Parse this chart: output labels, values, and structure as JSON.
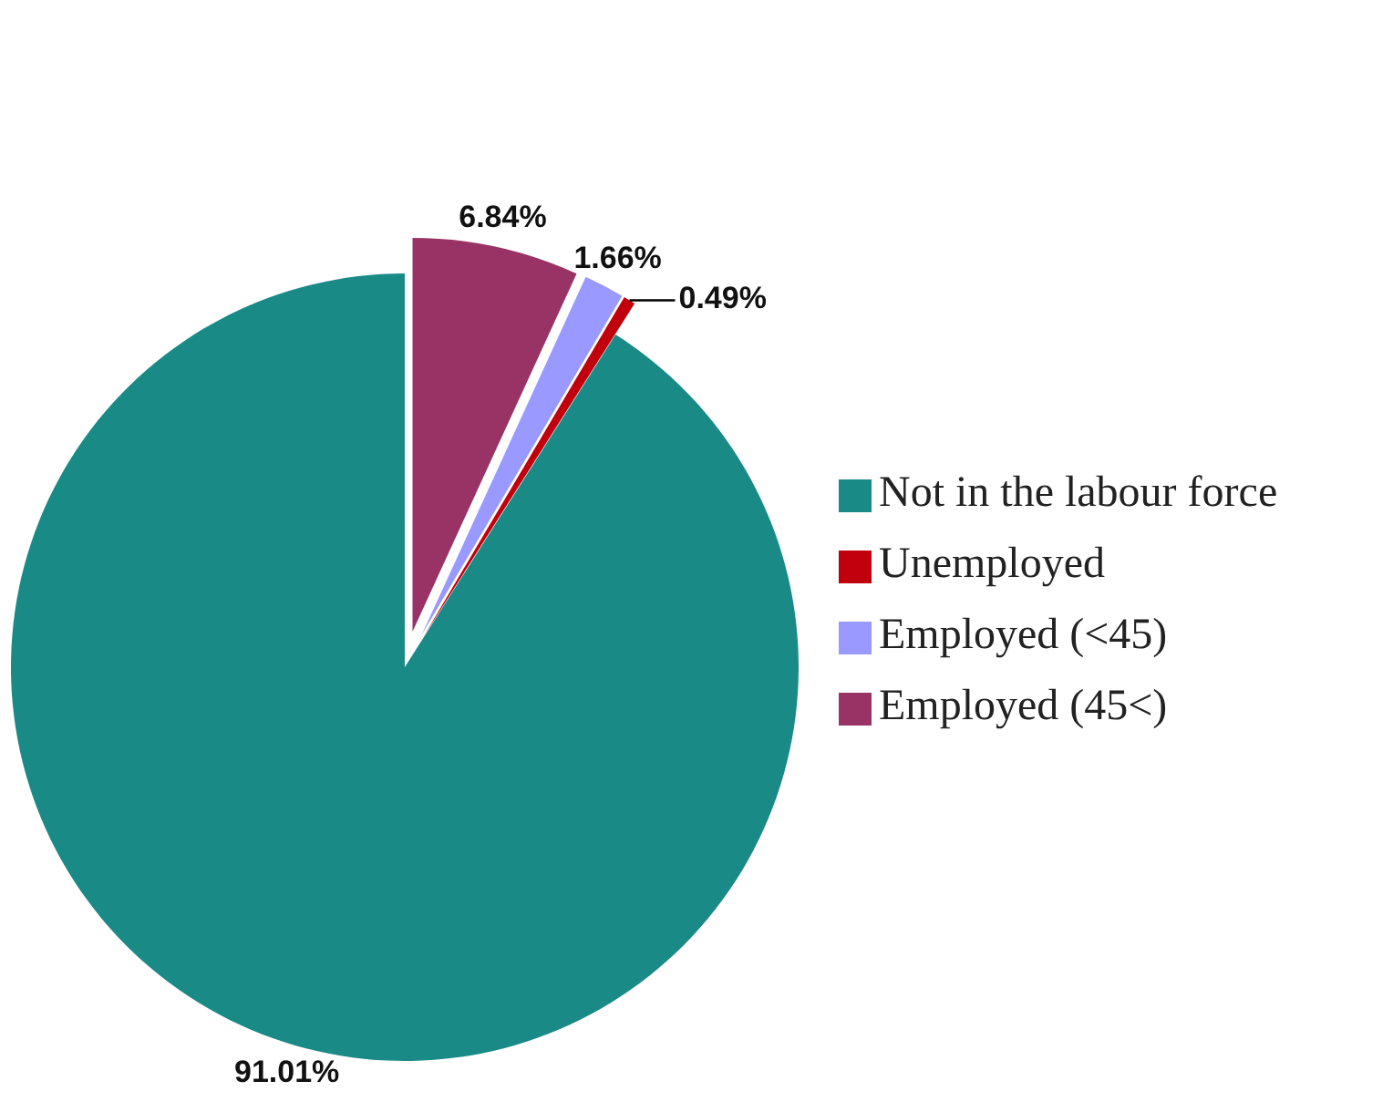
{
  "chart_data": {
    "type": "pie",
    "categories": [
      "Not in the labour force",
      "Unemployed",
      "Employed (<45)",
      "Employed (45<)"
    ],
    "values": [
      91.01,
      0.49,
      1.66,
      6.84
    ],
    "colors": [
      "#1a8a86",
      "#c0000c",
      "#9999ff",
      "#993366"
    ],
    "value_labels": [
      "91.01%",
      "0.49%",
      "1.66%",
      "6.84%"
    ],
    "legend": "right"
  }
}
